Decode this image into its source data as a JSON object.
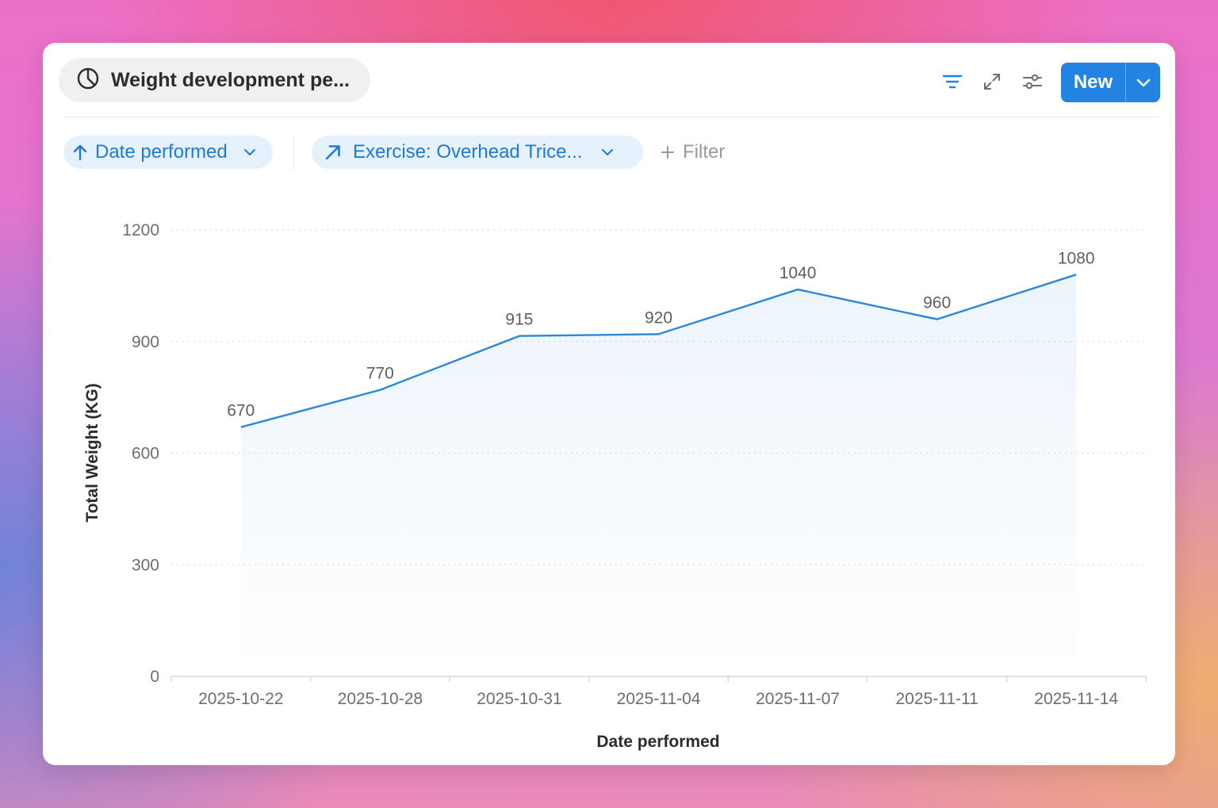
{
  "header": {
    "title": "Weight development pe...",
    "new_label": "New",
    "icons": {
      "chart": "pie-chart-icon",
      "filter": "filter-lines-icon",
      "expand": "expand-arrows-icon",
      "settings": "sliders-icon",
      "dropdown": "chevron-down-icon"
    }
  },
  "filters": {
    "sort_label": "Date performed",
    "exercise_label": "Exercise: Overhead Trice...",
    "add_filter_label": "Filter"
  },
  "colors": {
    "accent": "#2383e2",
    "chip_bg": "#e5f1fc",
    "chip_text": "#1f7ad6",
    "line": "#2b87da"
  },
  "chart_data": {
    "type": "area",
    "categories": [
      "2025-10-22",
      "2025-10-28",
      "2025-10-31",
      "2025-11-04",
      "2025-11-07",
      "2025-11-11",
      "2025-11-14"
    ],
    "values": [
      670,
      770,
      915,
      920,
      1040,
      960,
      1080
    ],
    "data_labels": [
      "670",
      "770",
      "915",
      "920",
      "1040",
      "960",
      "1080"
    ],
    "xlabel": "Date performed",
    "ylabel": "Total Weight (KG)",
    "ylim": [
      0,
      1200
    ],
    "yticks": [
      0,
      300,
      600,
      900,
      1200
    ],
    "ytick_labels": [
      "0",
      "300",
      "600",
      "900",
      "1200"
    ],
    "grid": true
  }
}
